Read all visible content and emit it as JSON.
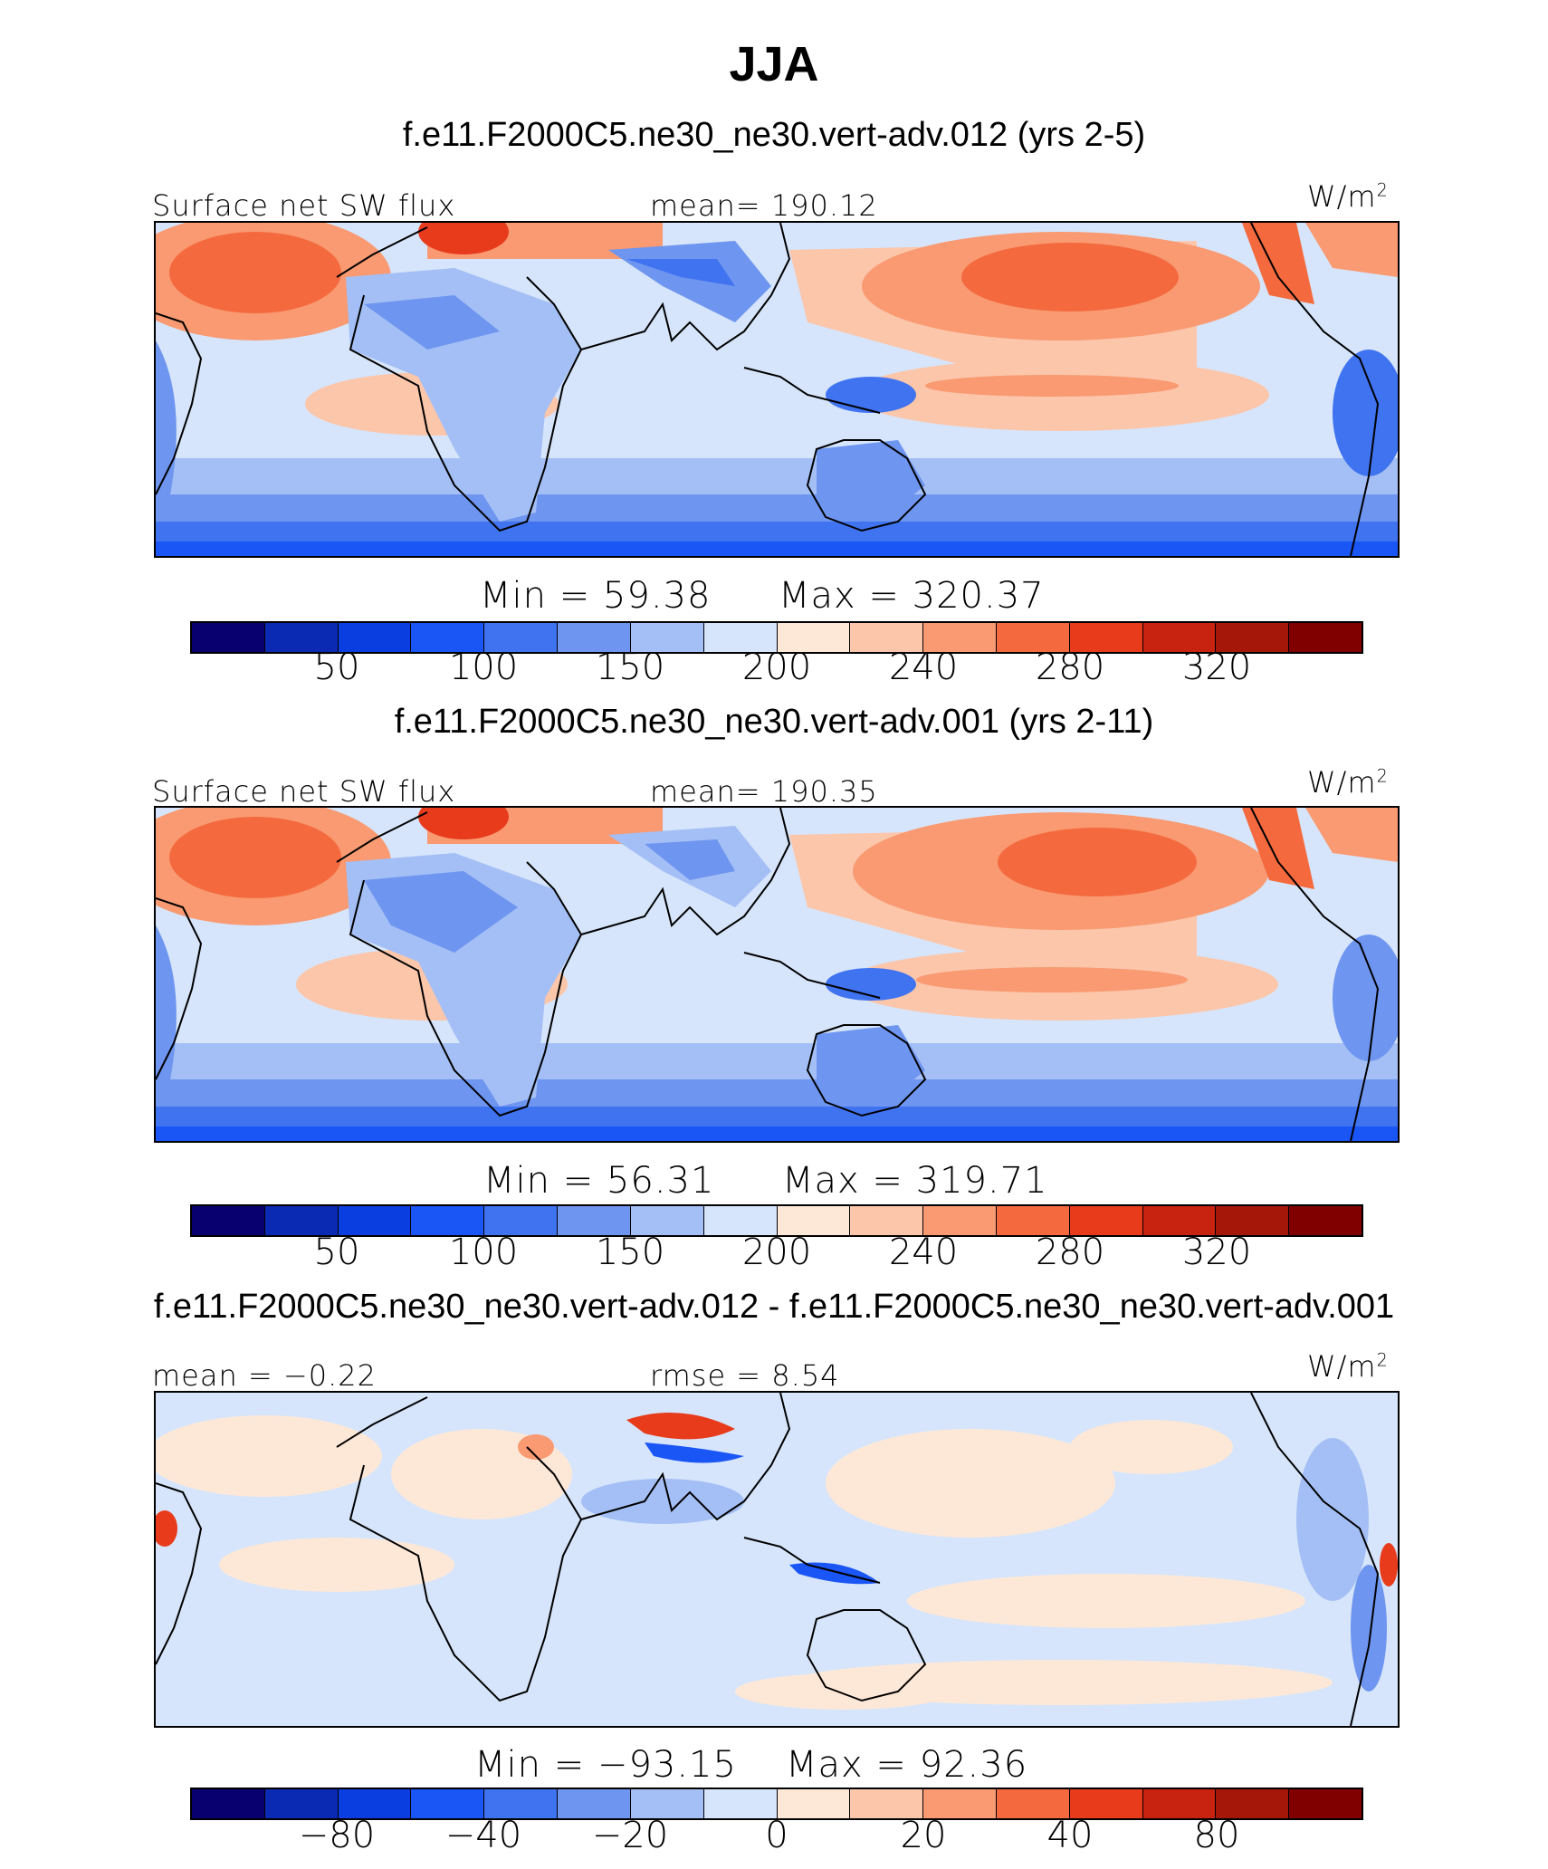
{
  "title": "JJA",
  "chart_data": [
    {
      "type": "heatmap",
      "case": "f.e11.F2000C5.ne30_ne30.vert-adv.012 (yrs 2-5)",
      "variable": "Surface net SW flux",
      "mean_label": "mean= 190.12",
      "units": "W/m",
      "units_exp": "2",
      "min_label": "Min  =   59.38",
      "max_label": "Max  =  320.37",
      "min": 59.38,
      "max": 320.37,
      "mean": 190.12,
      "colorbar_ticks": [
        "50",
        "100",
        "150",
        "200",
        "240",
        "280",
        "320"
      ]
    },
    {
      "type": "heatmap",
      "case": "f.e11.F2000C5.ne30_ne30.vert-adv.001 (yrs 2-11)",
      "variable": "Surface net SW flux",
      "mean_label": "mean= 190.35",
      "units": "W/m",
      "units_exp": "2",
      "min_label": "Min  =   56.31",
      "max_label": "Max  =  319.71",
      "min": 56.31,
      "max": 319.71,
      "mean": 190.35,
      "colorbar_ticks": [
        "50",
        "100",
        "150",
        "200",
        "240",
        "280",
        "320"
      ]
    },
    {
      "type": "heatmap",
      "case": "f.e11.F2000C5.ne30_ne30.vert-adv.012 - f.e11.F2000C5.ne30_ne30.vert-adv.001",
      "variable": "mean =  −0.22",
      "mean_label": "rmse =     8.54",
      "units": "W/m",
      "units_exp": "2",
      "min_label": "Min  = −93.15",
      "max_label": "Max  =    92.36",
      "min": -93.15,
      "max": 92.36,
      "mean": -0.22,
      "rmse": 8.54,
      "colorbar_ticks": [
        "−80",
        "−40",
        "−20",
        "0",
        "20",
        "40",
        "80"
      ]
    }
  ],
  "colors": {
    "levels": [
      "#08006e",
      "#0a2ab4",
      "#0a3ee0",
      "#1a55f5",
      "#3f73f0",
      "#6e95f0",
      "#a4bff5",
      "#d6e5fb",
      "#fde8d8",
      "#fcc6ab",
      "#f99a72",
      "#f46a3e",
      "#e83b1b",
      "#c82210",
      "#a51708",
      "#800000"
    ]
  }
}
